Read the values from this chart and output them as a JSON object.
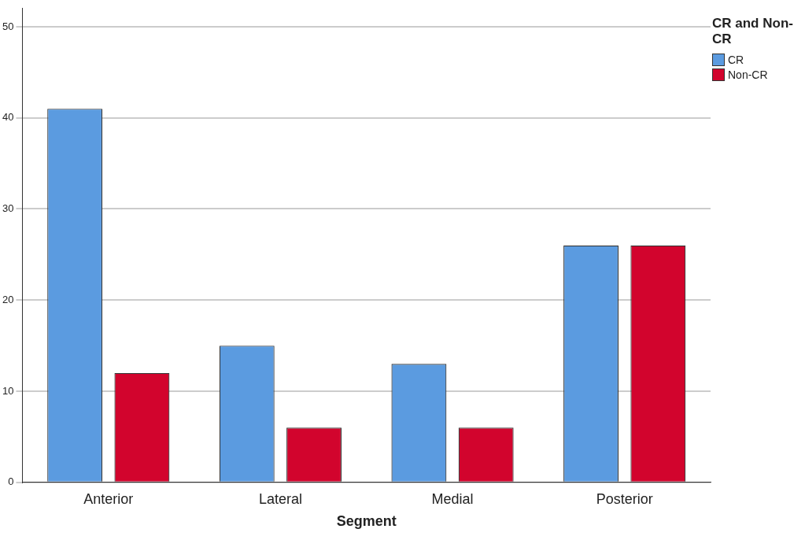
{
  "chart_data": {
    "type": "bar",
    "xlabel": "Segment",
    "legend_title": "CR and Non-CR",
    "categories": [
      "Anterior",
      "Lateral",
      "Medial",
      "Posterior"
    ],
    "series": [
      {
        "name": "CR",
        "color": "#5b9be0",
        "values": [
          41,
          15,
          13,
          26
        ]
      },
      {
        "name": "Non-CR",
        "color": "#d2042d",
        "values": [
          12,
          6,
          6,
          26
        ]
      }
    ],
    "ylim": [
      0,
      52
    ],
    "yticks": [
      0,
      10,
      20,
      30,
      40,
      50
    ],
    "grid": "y",
    "legend": "top right"
  }
}
